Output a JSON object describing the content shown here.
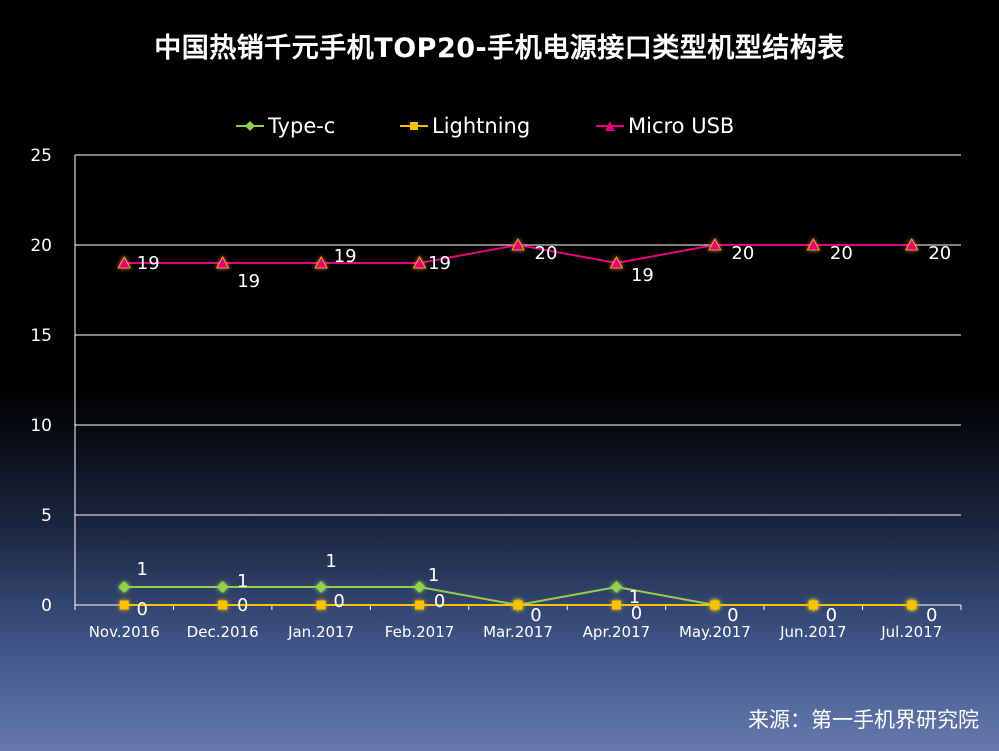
{
  "chart_data": {
    "type": "line",
    "title": "中国热销千元手机TOP20-手机电源接口类型机型结构表",
    "categories": [
      "Nov.2016",
      "Dec.2016",
      "Jan.2017",
      "Feb.2017",
      "Mar.2017",
      "Apr.2017",
      "May.2017",
      "Jun.2017",
      "Jul.2017"
    ],
    "series": [
      {
        "name": "Type-c",
        "color": "#92d050",
        "marker": "diamond",
        "values": [
          1,
          1,
          1,
          1,
          0,
          1,
          0,
          0,
          0
        ],
        "show_labels": [
          true,
          true,
          true,
          true,
          false,
          true,
          false,
          false,
          false
        ]
      },
      {
        "name": "Lightning",
        "color": "#ffc000",
        "marker": "square",
        "values": [
          0,
          0,
          0,
          0,
          0,
          0,
          0,
          0,
          0
        ],
        "show_labels": [
          true,
          true,
          true,
          true,
          true,
          true,
          true,
          true,
          true
        ]
      },
      {
        "name": "Micro USB",
        "color": "#e6007e",
        "marker": "triangle",
        "values": [
          19,
          19,
          19,
          19,
          20,
          19,
          20,
          20,
          20
        ],
        "show_labels": [
          true,
          true,
          true,
          true,
          true,
          true,
          true,
          true,
          true
        ]
      }
    ],
    "ylim": [
      0,
      25
    ],
    "yticks": [
      0,
      5,
      10,
      15,
      20,
      25
    ],
    "grid": true,
    "legend_position": "top"
  },
  "source_text": "来源：第一手机界研究院"
}
